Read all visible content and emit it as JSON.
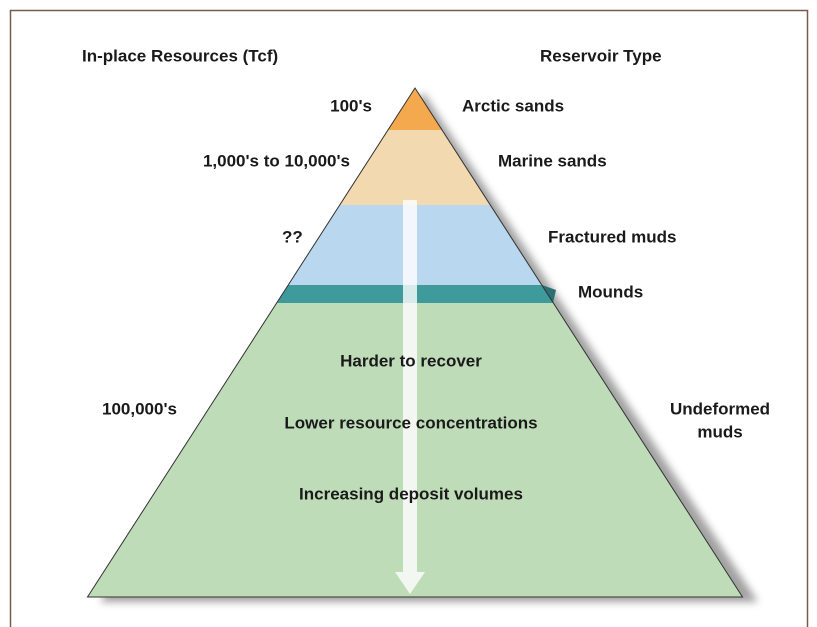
{
  "headers": {
    "left": "In-place Resources (Tcf)",
    "right": "Reservoir Type"
  },
  "levels": [
    {
      "resource": "100's",
      "reservoir": [
        "Arctic sands"
      ]
    },
    {
      "resource": "1,000's to 10,000's",
      "reservoir": [
        "Marine sands"
      ]
    },
    {
      "resource": "??",
      "reservoir": [
        "Fractured muds"
      ]
    },
    {
      "reservoir": [
        "Mounds"
      ]
    },
    {
      "resource": "100,000's",
      "reservoir": [
        "Undeformed",
        "muds"
      ]
    }
  ],
  "center_notes": [
    "Harder to recover",
    "Lower resource concentrations",
    "Increasing deposit volumes"
  ]
}
